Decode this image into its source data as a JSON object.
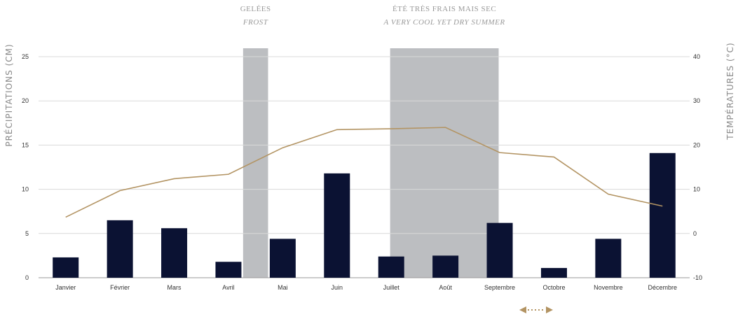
{
  "chart_data": {
    "type": "bar",
    "categories": [
      "Janvier",
      "Février",
      "Mars",
      "Avril",
      "Mai",
      "Juin",
      "Juillet",
      "Août",
      "Septembre",
      "Octobre",
      "Novembre",
      "Décembre"
    ],
    "ylabel": "PRÉCIPITATIONS (CM)",
    "y2label": "TEMPÉRATURES (°C)",
    "ylim": [
      0,
      25
    ],
    "y2lim": [
      -10,
      40
    ],
    "yticks": [
      "0",
      "5",
      "10",
      "15",
      "20",
      "25"
    ],
    "y2ticks": [
      "-10",
      "0",
      "10",
      "20",
      "30",
      "40"
    ],
    "grid": true,
    "series": [
      {
        "type": "bar",
        "axis": "left",
        "color": "#0b1233",
        "values": [
          2.3,
          6.5,
          5.6,
          1.8,
          4.4,
          11.8,
          2.4,
          2.5,
          6.2,
          1.1,
          4.4,
          14.1
        ]
      },
      {
        "type": "line",
        "axis": "right",
        "color": "#b39463",
        "values": [
          3.7,
          9.7,
          12.4,
          13.4,
          19.4,
          23.5,
          23.7,
          24.0,
          18.3,
          17.3,
          8.9,
          6.2
        ]
      }
    ],
    "annotations": [
      {
        "line1": "GELÉES",
        "line2": "FROST",
        "from_category": "Avril",
        "to_category": "Mai"
      },
      {
        "line1": "ÉTÉ TRÈS FRAIS MAIS SEC",
        "line2": "A VERY COOL YET DRY SUMMER",
        "from_category": "Juillet",
        "to_category": "Septembre"
      }
    ],
    "band_color": "#bcbec1",
    "scroll_hint_icon": "double-arrow-icon"
  }
}
